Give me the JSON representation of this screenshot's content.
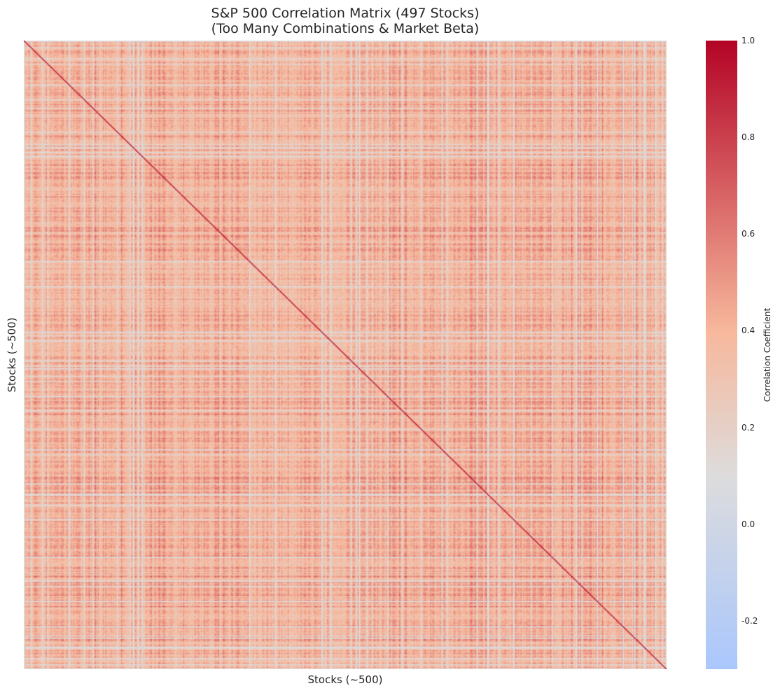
{
  "chart_data": {
    "type": "heatmap",
    "title_lines": [
      "S&P 500 Correlation Matrix (497 Stocks)",
      "(Too Many Combinations & Market Beta)"
    ],
    "xlabel": "Stocks (~500)",
    "ylabel": "Stocks (~500)",
    "n_rows": 497,
    "n_cols": 497,
    "colormap": "coolwarm",
    "value_range": [
      -0.3,
      1.0
    ],
    "diagonal_value": 1.0,
    "typical_offdiag_range": [
      0.1,
      0.6
    ],
    "colorbar": {
      "label": "Correlation Coefficient",
      "ticks": [
        {
          "value": 1.0,
          "label": "1.0"
        },
        {
          "value": 0.8,
          "label": "0.8"
        },
        {
          "value": 0.6,
          "label": "0.6"
        },
        {
          "value": 0.4,
          "label": "0.4"
        },
        {
          "value": 0.2,
          "label": "0.2"
        },
        {
          "value": 0.0,
          "label": "0.0"
        },
        {
          "value": -0.2,
          "label": "-0.2"
        }
      ]
    }
  },
  "colors": {
    "cmap_stops": [
      "#3b4cc0",
      "#aac7fd",
      "#dddcdc",
      "#f7b89c",
      "#b40426"
    ]
  }
}
